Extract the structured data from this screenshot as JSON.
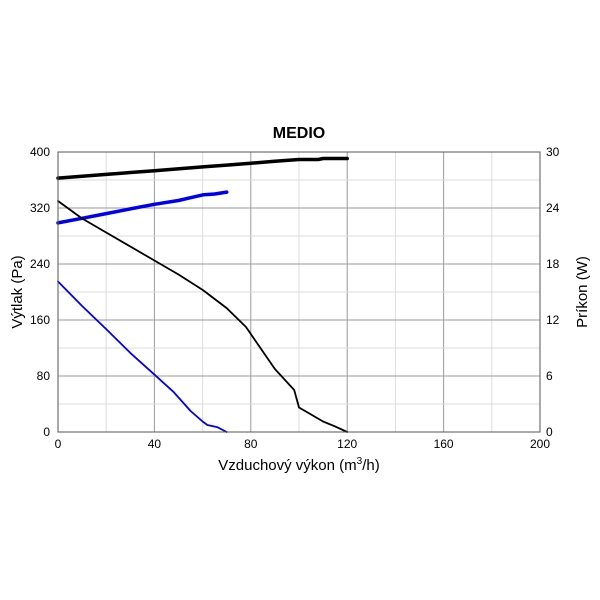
{
  "chart_data": {
    "type": "line",
    "title": "MEDIO",
    "xlabel_main": "Vzduchový výkon (m",
    "xlabel_sup": "3",
    "xlabel_tail": "/h)",
    "ylabel": "Výtlak (Pa)",
    "y2label": "Príkon (W)",
    "xlim": [
      0,
      200
    ],
    "ylim": [
      0,
      400
    ],
    "y2lim": [
      0,
      30
    ],
    "xticks": [
      0,
      40,
      80,
      120,
      160,
      200
    ],
    "yticks": [
      0,
      80,
      160,
      240,
      320,
      400
    ],
    "y2ticks": [
      0,
      6,
      12,
      18,
      24,
      30
    ],
    "grid": true,
    "series": [
      {
        "axis": "y2",
        "color": "#000000",
        "weight": "thick",
        "x": [
          0,
          20,
          40,
          60,
          70,
          80,
          90,
          95,
          100,
          105,
          108,
          110,
          115,
          120
        ],
        "y": [
          27.2,
          27.6,
          28.0,
          28.4,
          28.6,
          28.8,
          29.0,
          29.1,
          29.2,
          29.2,
          29.2,
          29.3,
          29.3,
          29.3
        ]
      },
      {
        "axis": "y2",
        "color": "#0000ee",
        "weight": "thick",
        "x": [
          0,
          10,
          20,
          30,
          40,
          50,
          55,
          60,
          65,
          70
        ],
        "y": [
          22.4,
          22.9,
          23.4,
          23.9,
          24.4,
          24.8,
          25.1,
          25.4,
          25.5,
          25.7
        ]
      },
      {
        "axis": "y",
        "color": "#000000",
        "weight": "thin",
        "x": [
          0,
          10,
          20,
          30,
          40,
          50,
          60,
          70,
          78,
          82,
          90,
          98,
          100,
          105,
          110,
          115,
          120
        ],
        "y": [
          330,
          305,
          285,
          265,
          245,
          225,
          203,
          177,
          150,
          130,
          90,
          60,
          35,
          25,
          15,
          8,
          0
        ]
      },
      {
        "axis": "y",
        "color": "#0000ee",
        "weight": "thin",
        "x": [
          0,
          10,
          20,
          30,
          40,
          48,
          55,
          60,
          62,
          66,
          70
        ],
        "y": [
          215,
          180,
          147,
          113,
          82,
          57,
          30,
          15,
          10,
          7,
          0
        ]
      }
    ]
  }
}
